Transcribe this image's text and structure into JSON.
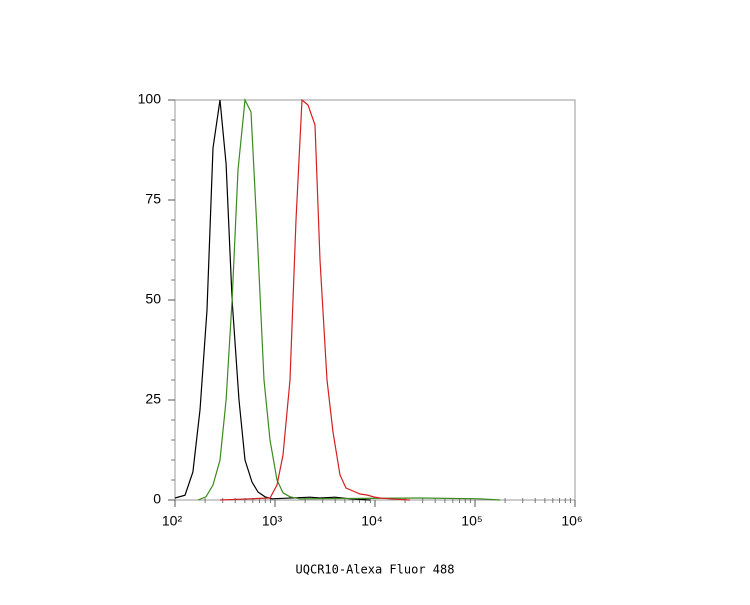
{
  "chart_data": {
    "type": "line",
    "x_label": "UQCR10-Alexa Fluor 488",
    "xscale": "log",
    "xlim": [
      100,
      1000000
    ],
    "ylim": [
      0,
      100
    ],
    "xticks": [
      {
        "value": 100,
        "label": "10²"
      },
      {
        "value": 1000,
        "label": "10³"
      },
      {
        "value": 10000,
        "label": "10⁴"
      },
      {
        "value": 100000,
        "label": "10⁵"
      },
      {
        "value": 1000000,
        "label": "10⁶"
      }
    ],
    "xminorticks": [
      200,
      300,
      400,
      500,
      600,
      700,
      800,
      900,
      2000,
      3000,
      4000,
      5000,
      6000,
      7000,
      8000,
      9000,
      20000,
      30000,
      40000,
      50000,
      60000,
      70000,
      80000,
      90000,
      200000,
      300000,
      400000,
      500000,
      600000,
      700000,
      800000,
      900000
    ],
    "yticks": [
      0,
      25,
      50,
      75,
      100
    ],
    "yminorticks": [
      5,
      10,
      15,
      20,
      30,
      35,
      40,
      45,
      55,
      60,
      65,
      70,
      80,
      85,
      90,
      95
    ],
    "series": [
      {
        "color": "#000000",
        "x": [
          100,
          126,
          151,
          178,
          209,
          240,
          282,
          324,
          372,
          437,
          501,
          589,
          676,
          794,
          933,
          2239,
          2818,
          3981,
          5623,
          8913
        ],
        "values": [
          0.5,
          1.2,
          7,
          22.5,
          47.5,
          88,
          100,
          84,
          50,
          25,
          10,
          4.5,
          2,
          0.8,
          0.3,
          0.7,
          0.5,
          0.7,
          0.3,
          0
        ]
      },
      {
        "color": "#3a8a1e",
        "x": [
          170,
          204,
          240,
          282,
          324,
          372,
          427,
          501,
          575,
          661,
          776,
          891,
          1047,
          1202,
          1413,
          1778,
          28184,
          112202,
          177828
        ],
        "values": [
          0,
          0.8,
          3.75,
          10,
          25,
          50,
          82.5,
          100,
          97,
          67.5,
          30,
          15,
          5,
          1.8,
          0.8,
          0.3,
          0.5,
          0.3,
          0
        ]
      },
      {
        "color": "#d42020",
        "x": [
          282,
          562,
          891,
          1047,
          1202,
          1413,
          1622,
          1862,
          2138,
          2512,
          2818,
          3311,
          3802,
          4467,
          5129,
          6026,
          7079,
          8318,
          9772,
          11220,
          14125,
          22387
        ],
        "values": [
          0,
          0.3,
          0.5,
          3.75,
          11.25,
          30,
          70,
          100,
          98.75,
          93.75,
          60,
          30,
          17,
          6.25,
          3,
          2.25,
          1.5,
          1.25,
          0.75,
          0.5,
          0.3,
          0
        ]
      }
    ]
  }
}
